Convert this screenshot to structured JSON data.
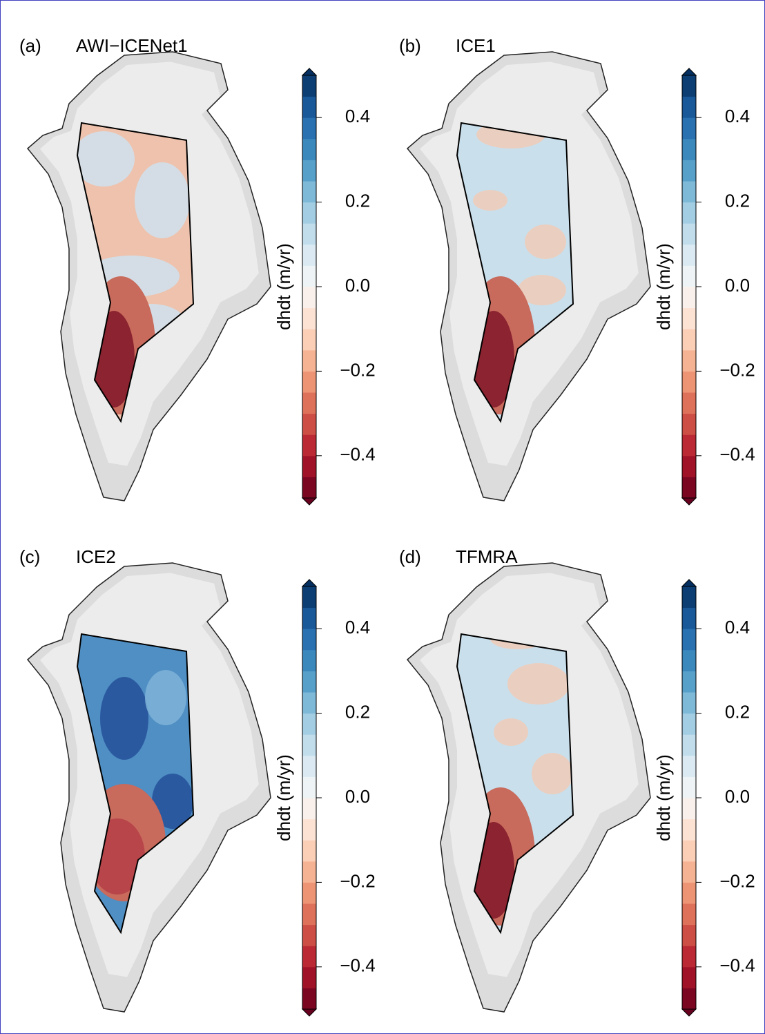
{
  "chart_data": [
    {
      "type": "map",
      "panel_label": "(a)",
      "title": "AWI−ICENet1",
      "colorbar_label": "dhdt (m/yr)",
      "colormap": "RdBu",
      "levels": 20,
      "clim": [
        -0.5,
        0.5
      ],
      "cticks": [
        {
          "value": -0.4,
          "label": "−0.4"
        },
        {
          "value": -0.2,
          "label": "−0.2"
        },
        {
          "value": 0,
          "label": "0.0"
        },
        0.2,
        0.4
      ]
    },
    {
      "type": "map",
      "panel_label": "(b)",
      "title": "ICE1",
      "colorbar_label": "dhdt (m/yr)",
      "colormap": "RdBu",
      "levels": 20,
      "clim": [
        -0.5,
        0.5
      ],
      "cticks": [
        {
          "value": -0.4,
          "label": "−0.4"
        },
        {
          "value": -0.2,
          "label": "−0.2"
        },
        {
          "value": 0,
          "label": "0.0"
        },
        0.2,
        0.4
      ]
    },
    {
      "type": "map",
      "panel_label": "(c)",
      "title": "ICE2",
      "colorbar_label": "dhdt (m/yr)",
      "colormap": "RdBu",
      "levels": 20,
      "clim": [
        -0.5,
        0.5
      ],
      "cticks": [
        {
          "value": -0.4,
          "label": "−0.4"
        },
        {
          "value": -0.2,
          "label": "−0.2"
        },
        {
          "value": 0,
          "label": "0.0"
        },
        0.2,
        0.4
      ]
    },
    {
      "type": "map",
      "panel_label": "(d)",
      "title": "TFMRA",
      "colorbar_label": "dhdt (m/yr)",
      "colormap": "RdBu",
      "levels": 20,
      "clim": [
        -0.5,
        0.5
      ],
      "cticks": [
        {
          "value": -0.4,
          "label": "−0.4"
        },
        {
          "value": -0.2,
          "label": "−0.2"
        },
        {
          "value": 0,
          "label": "0.0"
        },
        0.2,
        0.4
      ]
    }
  ]
}
